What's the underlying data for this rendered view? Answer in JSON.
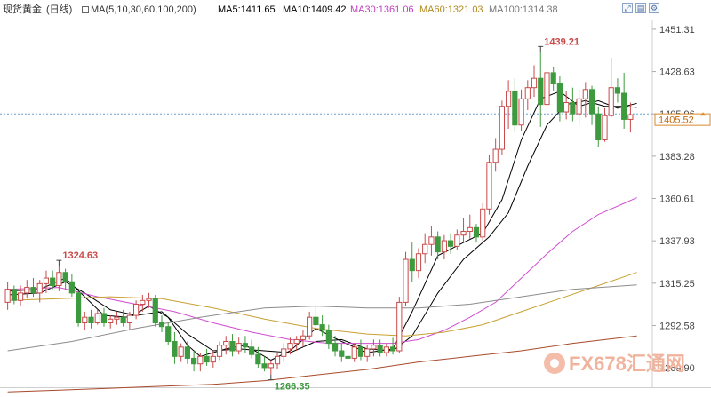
{
  "header": {
    "instrument": "现货黄金",
    "period": "(日线)",
    "ma_spec": "MA(5,10,30,60,100,200)",
    "ma5": "MA5:1411.65",
    "ma10": "MA10:1409.42",
    "ma30": "MA30:1361.06",
    "ma60": "MA60:1321.03",
    "ma100": "MA100:1314.38",
    "toolbar": [
      "expand-icon",
      "export-icon",
      "settings-icon"
    ]
  },
  "watermark": {
    "text": "FX678汇通网"
  },
  "chart_data": {
    "type": "candlestick",
    "y_ticks": [
      "1451.31",
      "1428.63",
      "1405.96",
      "1383.28",
      "1360.61",
      "1337.93",
      "1315.25",
      "1292.58",
      "1269.90"
    ],
    "ylim": [
      1259.5,
      1456.5
    ],
    "current_price": {
      "value": 1405.52,
      "label": "1405.52"
    },
    "annotations": [
      {
        "label": "1439.21",
        "value": 1439.21,
        "index": 83,
        "pos": "above"
      },
      {
        "label": "1324.63",
        "value": 1324.63,
        "index": 8,
        "pos": "above"
      },
      {
        "label": "1266.35",
        "value": 1266.35,
        "index": 41,
        "pos": "below"
      }
    ],
    "candles": [
      {
        "o": 1305,
        "h": 1316,
        "l": 1301,
        "c": 1312
      },
      {
        "o": 1312,
        "h": 1314,
        "l": 1304,
        "c": 1306
      },
      {
        "o": 1306,
        "h": 1314,
        "l": 1303,
        "c": 1310
      },
      {
        "o": 1310,
        "h": 1317,
        "l": 1307,
        "c": 1313
      },
      {
        "o": 1313,
        "h": 1318,
        "l": 1308,
        "c": 1310
      },
      {
        "o": 1310,
        "h": 1317,
        "l": 1305,
        "c": 1315
      },
      {
        "o": 1315,
        "h": 1322,
        "l": 1310,
        "c": 1318
      },
      {
        "o": 1318,
        "h": 1322,
        "l": 1312,
        "c": 1314
      },
      {
        "o": 1314,
        "h": 1324.63,
        "l": 1311,
        "c": 1321
      },
      {
        "o": 1321,
        "h": 1323,
        "l": 1312,
        "c": 1316
      },
      {
        "o": 1316,
        "h": 1320,
        "l": 1308,
        "c": 1310
      },
      {
        "o": 1310,
        "h": 1311,
        "l": 1292,
        "c": 1294
      },
      {
        "o": 1294,
        "h": 1300,
        "l": 1290,
        "c": 1297
      },
      {
        "o": 1297,
        "h": 1301,
        "l": 1291,
        "c": 1294
      },
      {
        "o": 1294,
        "h": 1301,
        "l": 1293,
        "c": 1299
      },
      {
        "o": 1299,
        "h": 1302,
        "l": 1292,
        "c": 1294
      },
      {
        "o": 1294,
        "h": 1298,
        "l": 1291,
        "c": 1296
      },
      {
        "o": 1296,
        "h": 1300,
        "l": 1293,
        "c": 1297
      },
      {
        "o": 1297,
        "h": 1301,
        "l": 1292,
        "c": 1294
      },
      {
        "o": 1294,
        "h": 1300,
        "l": 1290,
        "c": 1298
      },
      {
        "o": 1298,
        "h": 1306,
        "l": 1296,
        "c": 1304
      },
      {
        "o": 1304,
        "h": 1309,
        "l": 1300,
        "c": 1306
      },
      {
        "o": 1306,
        "h": 1310,
        "l": 1302,
        "c": 1307
      },
      {
        "o": 1307,
        "h": 1309,
        "l": 1292,
        "c": 1294
      },
      {
        "o": 1294,
        "h": 1298,
        "l": 1289,
        "c": 1292
      },
      {
        "o": 1292,
        "h": 1294,
        "l": 1282,
        "c": 1284
      },
      {
        "o": 1284,
        "h": 1289,
        "l": 1272,
        "c": 1276
      },
      {
        "o": 1276,
        "h": 1283,
        "l": 1273,
        "c": 1281
      },
      {
        "o": 1281,
        "h": 1284,
        "l": 1272,
        "c": 1275
      },
      {
        "o": 1275,
        "h": 1279,
        "l": 1268,
        "c": 1272
      },
      {
        "o": 1272,
        "h": 1278,
        "l": 1268,
        "c": 1276
      },
      {
        "o": 1276,
        "h": 1280,
        "l": 1271,
        "c": 1273
      },
      {
        "o": 1273,
        "h": 1279,
        "l": 1270,
        "c": 1276
      },
      {
        "o": 1276,
        "h": 1284,
        "l": 1274,
        "c": 1282
      },
      {
        "o": 1282,
        "h": 1287,
        "l": 1277,
        "c": 1284
      },
      {
        "o": 1284,
        "h": 1288,
        "l": 1276,
        "c": 1279
      },
      {
        "o": 1279,
        "h": 1286,
        "l": 1277,
        "c": 1283
      },
      {
        "o": 1283,
        "h": 1287,
        "l": 1278,
        "c": 1281
      },
      {
        "o": 1281,
        "h": 1285,
        "l": 1275,
        "c": 1277
      },
      {
        "o": 1277,
        "h": 1281,
        "l": 1270,
        "c": 1272
      },
      {
        "o": 1272,
        "h": 1276,
        "l": 1268,
        "c": 1270
      },
      {
        "o": 1270,
        "h": 1274,
        "l": 1266.35,
        "c": 1272
      },
      {
        "o": 1272,
        "h": 1278,
        "l": 1269,
        "c": 1276
      },
      {
        "o": 1276,
        "h": 1283,
        "l": 1273,
        "c": 1280
      },
      {
        "o": 1280,
        "h": 1286,
        "l": 1277,
        "c": 1283
      },
      {
        "o": 1283,
        "h": 1287,
        "l": 1279,
        "c": 1285
      },
      {
        "o": 1285,
        "h": 1290,
        "l": 1281,
        "c": 1287
      },
      {
        "o": 1287,
        "h": 1300,
        "l": 1285,
        "c": 1297
      },
      {
        "o": 1297,
        "h": 1303,
        "l": 1290,
        "c": 1293
      },
      {
        "o": 1293,
        "h": 1298,
        "l": 1287,
        "c": 1290
      },
      {
        "o": 1290,
        "h": 1293,
        "l": 1280,
        "c": 1283
      },
      {
        "o": 1283,
        "h": 1287,
        "l": 1276,
        "c": 1279
      },
      {
        "o": 1279,
        "h": 1283,
        "l": 1273,
        "c": 1276
      },
      {
        "o": 1276,
        "h": 1281,
        "l": 1272,
        "c": 1275
      },
      {
        "o": 1275,
        "h": 1283,
        "l": 1273,
        "c": 1281
      },
      {
        "o": 1281,
        "h": 1285,
        "l": 1274,
        "c": 1276
      },
      {
        "o": 1276,
        "h": 1282,
        "l": 1273,
        "c": 1280
      },
      {
        "o": 1280,
        "h": 1285,
        "l": 1276,
        "c": 1282
      },
      {
        "o": 1282,
        "h": 1285,
        "l": 1276,
        "c": 1278
      },
      {
        "o": 1278,
        "h": 1283,
        "l": 1276,
        "c": 1281
      },
      {
        "o": 1281,
        "h": 1286,
        "l": 1277,
        "c": 1279
      },
      {
        "o": 1279,
        "h": 1308,
        "l": 1278,
        "c": 1305
      },
      {
        "o": 1305,
        "h": 1332,
        "l": 1303,
        "c": 1328
      },
      {
        "o": 1328,
        "h": 1337,
        "l": 1316,
        "c": 1322
      },
      {
        "o": 1322,
        "h": 1334,
        "l": 1318,
        "c": 1331
      },
      {
        "o": 1331,
        "h": 1342,
        "l": 1326,
        "c": 1336
      },
      {
        "o": 1336,
        "h": 1346,
        "l": 1330,
        "c": 1340
      },
      {
        "o": 1340,
        "h": 1343,
        "l": 1328,
        "c": 1332
      },
      {
        "o": 1332,
        "h": 1341,
        "l": 1328,
        "c": 1338
      },
      {
        "o": 1338,
        "h": 1342,
        "l": 1331,
        "c": 1335
      },
      {
        "o": 1335,
        "h": 1344,
        "l": 1333,
        "c": 1341
      },
      {
        "o": 1341,
        "h": 1350,
        "l": 1337,
        "c": 1343
      },
      {
        "o": 1343,
        "h": 1352,
        "l": 1339,
        "c": 1345
      },
      {
        "o": 1345,
        "h": 1347,
        "l": 1337,
        "c": 1340
      },
      {
        "o": 1340,
        "h": 1358,
        "l": 1338,
        "c": 1355
      },
      {
        "o": 1355,
        "h": 1384,
        "l": 1352,
        "c": 1380
      },
      {
        "o": 1380,
        "h": 1393,
        "l": 1375,
        "c": 1387
      },
      {
        "o": 1387,
        "h": 1413,
        "l": 1384,
        "c": 1410
      },
      {
        "o": 1410,
        "h": 1424,
        "l": 1398,
        "c": 1418
      },
      {
        "o": 1418,
        "h": 1425,
        "l": 1396,
        "c": 1400
      },
      {
        "o": 1400,
        "h": 1419,
        "l": 1397,
        "c": 1414
      },
      {
        "o": 1414,
        "h": 1424,
        "l": 1408,
        "c": 1420
      },
      {
        "o": 1420,
        "h": 1432,
        "l": 1415,
        "c": 1425
      },
      {
        "o": 1425,
        "h": 1439.21,
        "l": 1399,
        "c": 1411
      },
      {
        "o": 1411,
        "h": 1431,
        "l": 1404,
        "c": 1428
      },
      {
        "o": 1428,
        "h": 1431,
        "l": 1418,
        "c": 1422
      },
      {
        "o": 1422,
        "h": 1426,
        "l": 1402,
        "c": 1407
      },
      {
        "o": 1407,
        "h": 1418,
        "l": 1403,
        "c": 1412
      },
      {
        "o": 1412,
        "h": 1420,
        "l": 1402,
        "c": 1406
      },
      {
        "o": 1406,
        "h": 1419,
        "l": 1400,
        "c": 1414
      },
      {
        "o": 1414,
        "h": 1423,
        "l": 1404,
        "c": 1419
      },
      {
        "o": 1419,
        "h": 1421,
        "l": 1400,
        "c": 1406
      },
      {
        "o": 1406,
        "h": 1410,
        "l": 1388,
        "c": 1392
      },
      {
        "o": 1392,
        "h": 1409,
        "l": 1391,
        "c": 1405
      },
      {
        "o": 1405,
        "h": 1436,
        "l": 1404,
        "c": 1420
      },
      {
        "o": 1420,
        "h": 1425,
        "l": 1412,
        "c": 1417
      },
      {
        "o": 1417,
        "h": 1428,
        "l": 1398,
        "c": 1403
      },
      {
        "o": 1403,
        "h": 1412,
        "l": 1396,
        "c": 1405.52
      }
    ],
    "moving_averages": [
      {
        "name": "MA5",
        "color": "#000000",
        "points": [
          [
            0,
            1311
          ],
          [
            5,
            1312
          ],
          [
            9,
            1318
          ],
          [
            12,
            1308
          ],
          [
            15,
            1298
          ],
          [
            19,
            1297
          ],
          [
            22,
            1303
          ],
          [
            25,
            1297
          ],
          [
            28,
            1282
          ],
          [
            30,
            1276
          ],
          [
            34,
            1280
          ],
          [
            37,
            1282
          ],
          [
            41,
            1274
          ],
          [
            44,
            1279
          ],
          [
            48,
            1291
          ],
          [
            52,
            1284
          ],
          [
            56,
            1278
          ],
          [
            60,
            1280
          ],
          [
            63,
            1300
          ],
          [
            67,
            1330
          ],
          [
            71,
            1337
          ],
          [
            74,
            1342
          ],
          [
            77,
            1360
          ],
          [
            80,
            1392
          ],
          [
            83,
            1414
          ],
          [
            86,
            1418
          ],
          [
            89,
            1410
          ],
          [
            92,
            1413
          ],
          [
            95,
            1409
          ],
          [
            98,
            1411.65
          ]
        ]
      },
      {
        "name": "MA10",
        "color": "#000000",
        "points": [
          [
            0,
            1309
          ],
          [
            5,
            1310
          ],
          [
            9,
            1316
          ],
          [
            12,
            1310
          ],
          [
            16,
            1301
          ],
          [
            20,
            1298
          ],
          [
            24,
            1300
          ],
          [
            28,
            1288
          ],
          [
            32,
            1279
          ],
          [
            36,
            1280
          ],
          [
            40,
            1279
          ],
          [
            44,
            1278
          ],
          [
            48,
            1284
          ],
          [
            52,
            1285
          ],
          [
            56,
            1280
          ],
          [
            60,
            1279
          ],
          [
            63,
            1287
          ],
          [
            67,
            1310
          ],
          [
            71,
            1328
          ],
          [
            75,
            1340
          ],
          [
            78,
            1353
          ],
          [
            81,
            1378
          ],
          [
            84,
            1400
          ],
          [
            87,
            1411
          ],
          [
            90,
            1413
          ],
          [
            93,
            1410
          ],
          [
            96,
            1410
          ],
          [
            98,
            1409.42
          ]
        ]
      },
      {
        "name": "MA30",
        "color": "#d04fd0",
        "points": [
          [
            0,
            1312
          ],
          [
            8,
            1313
          ],
          [
            14,
            1308
          ],
          [
            20,
            1304
          ],
          [
            26,
            1300
          ],
          [
            32,
            1294
          ],
          [
            38,
            1289
          ],
          [
            44,
            1285
          ],
          [
            50,
            1283
          ],
          [
            56,
            1283
          ],
          [
            60,
            1283
          ],
          [
            64,
            1285
          ],
          [
            68,
            1290
          ],
          [
            72,
            1297
          ],
          [
            76,
            1305
          ],
          [
            80,
            1318
          ],
          [
            84,
            1331
          ],
          [
            88,
            1343
          ],
          [
            92,
            1352
          ],
          [
            96,
            1358
          ],
          [
            98,
            1361.06
          ]
        ]
      },
      {
        "name": "MA60",
        "color": "#c8a032",
        "points": [
          [
            0,
            1306
          ],
          [
            8,
            1307
          ],
          [
            16,
            1308
          ],
          [
            24,
            1307
          ],
          [
            32,
            1302
          ],
          [
            40,
            1296
          ],
          [
            48,
            1291
          ],
          [
            56,
            1288
          ],
          [
            62,
            1287
          ],
          [
            68,
            1289
          ],
          [
            74,
            1293
          ],
          [
            80,
            1300
          ],
          [
            86,
            1307
          ],
          [
            92,
            1314
          ],
          [
            98,
            1321.03
          ]
        ]
      },
      {
        "name": "MA100",
        "color": "#8c8c8c",
        "points": [
          [
            0,
            1279
          ],
          [
            10,
            1284
          ],
          [
            20,
            1291
          ],
          [
            30,
            1297
          ],
          [
            40,
            1302
          ],
          [
            48,
            1303
          ],
          [
            56,
            1302
          ],
          [
            64,
            1302
          ],
          [
            72,
            1304
          ],
          [
            80,
            1308
          ],
          [
            88,
            1312
          ],
          [
            98,
            1314.38
          ]
        ]
      },
      {
        "name": "MA200",
        "color": "#a84a2a",
        "points": [
          [
            0,
            1257
          ],
          [
            8,
            1258
          ],
          [
            16,
            1259
          ],
          [
            24,
            1260
          ],
          [
            32,
            1261
          ],
          [
            40,
            1263
          ],
          [
            48,
            1266
          ],
          [
            56,
            1269
          ],
          [
            64,
            1273
          ],
          [
            72,
            1276
          ],
          [
            80,
            1279
          ],
          [
            88,
            1283
          ],
          [
            98,
            1287
          ]
        ]
      }
    ]
  }
}
